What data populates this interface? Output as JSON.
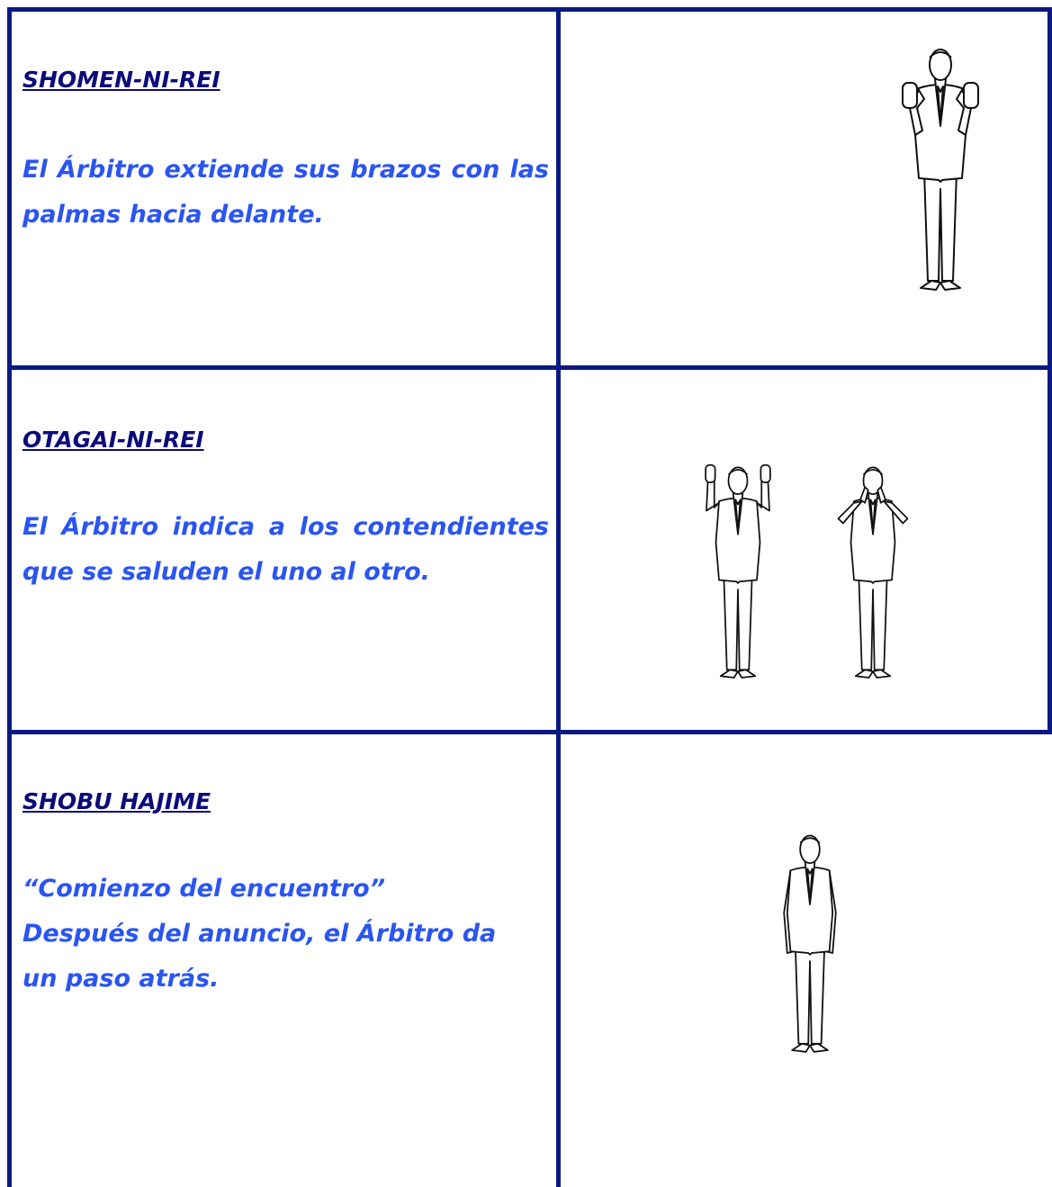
{
  "rows": [
    {
      "title": "SHOMEN-NI-REI",
      "body": [
        "El Árbitro extiende sus brazos con las palmas hacia delante."
      ]
    },
    {
      "title": "OTAGAI-NI-REI",
      "body": [
        "El Árbitro indica a los contendientes que se saluden el uno al otro."
      ]
    },
    {
      "title": "SHOBU HAJIME",
      "body": [
        "“Comienzo del encuentro”",
        "Después del anuncio, el Árbitro da un paso atrás."
      ]
    }
  ]
}
